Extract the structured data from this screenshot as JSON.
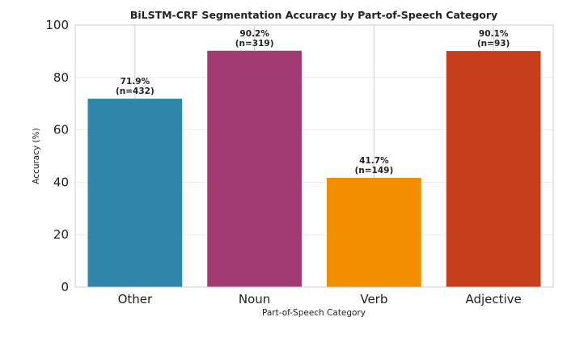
{
  "chart_data": {
    "type": "bar",
    "title": "BiLSTM-CRF Segmentation Accuracy by Part-of-Speech Category",
    "xlabel": "Part-of-Speech Category",
    "ylabel": "Accuracy (%)",
    "ylim": [
      0,
      100
    ],
    "yticks": [
      0,
      20,
      40,
      60,
      80,
      100
    ],
    "grid": true,
    "categories": [
      "Other",
      "Noun",
      "Verb",
      "Adjective"
    ],
    "values": [
      71.9,
      90.2,
      41.7,
      90.1
    ],
    "value_labels": [
      "71.9%",
      "90.2%",
      "41.7%",
      "90.1%"
    ],
    "count_labels": [
      "(n=432)",
      "(n=319)",
      "(n=149)",
      "(n=93)"
    ],
    "colors": [
      "#2e86ab",
      "#a23b72",
      "#f18f01",
      "#c73e1d"
    ]
  }
}
